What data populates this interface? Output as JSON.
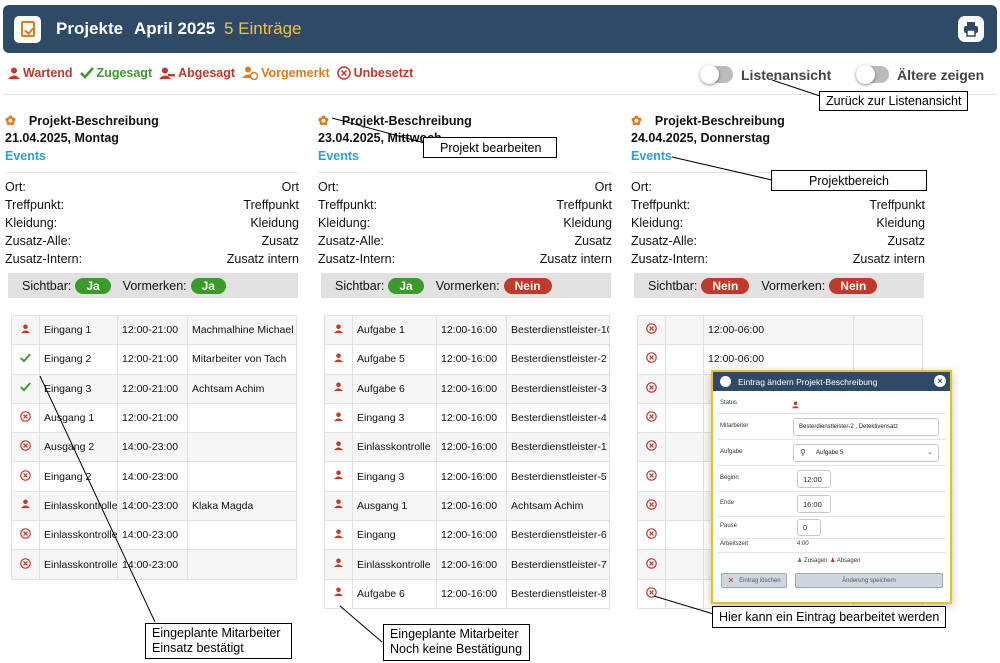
{
  "header": {
    "title": "Projekte",
    "month": "April 2025",
    "count": "5 Einträge",
    "logo_icon": "clipboard-check-icon",
    "print_icon": "printer-icon",
    "background": "#2f4a66",
    "count_color": "#f3c33c"
  },
  "legend": {
    "waiting": "Wartend",
    "confirmed": "Zugesagt",
    "declined": "Abgesagt",
    "reserved": "Vorgemerkt",
    "unfilled": "Unbesetzt"
  },
  "toggles": {
    "list_view": "Listenansicht",
    "show_older": "Ältere zeigen"
  },
  "labels": {
    "ort": "Ort:",
    "treffpunkt": "Treffpunkt:",
    "kleidung": "Kleidung:",
    "zusatz_alle": "Zusatz-Alle:",
    "zusatz_intern": "Zusatz-Intern:",
    "sichtbar": "Sichtbar:",
    "vormerken": "Vormerken:"
  },
  "columns": [
    {
      "title": "Projekt-Beschreibung",
      "date": "21.04.2025, Montag",
      "events": "Events",
      "ort": "Ort",
      "treffpunkt": "Treffpunkt",
      "kleidung": "Kleidung",
      "zusatz": "Zusatz",
      "zusatz_intern": "Zusatz intern",
      "sichtbar": "Ja",
      "vormerken": "Ja",
      "rows": [
        {
          "status": "waiting",
          "task": "Eingang 1",
          "time": "12:00-21:00",
          "person": "Machmalhine Michael"
        },
        {
          "status": "confirmed",
          "task": "Eingang 2",
          "time": "12:00-21:00",
          "person": "Mitarbeiter von Tach"
        },
        {
          "status": "confirmed",
          "task": "Eingang 3",
          "time": "12:00-21:00",
          "person": "Achtsam Achim"
        },
        {
          "status": "unfilled",
          "task": "Ausgang 1",
          "time": "12:00-21:00",
          "person": ""
        },
        {
          "status": "unfilled",
          "task": "Ausgang 2",
          "time": "14:00-23:00",
          "person": ""
        },
        {
          "status": "unfilled",
          "task": "Eingang 2",
          "time": "14:00-23:00",
          "person": ""
        },
        {
          "status": "waiting",
          "task": "Einlasskontrolle",
          "time": "14:00-23:00",
          "person": "Klaka Magda"
        },
        {
          "status": "unfilled",
          "task": "Einlasskontrolle",
          "time": "14:00-23:00",
          "person": ""
        },
        {
          "status": "unfilled",
          "task": "Einlasskontrolle",
          "time": "14:00-23:00",
          "person": ""
        }
      ]
    },
    {
      "title": "Projekt-Beschreibung",
      "date": "23.04.2025, Mittwoch",
      "events": "Events",
      "ort": "Ort",
      "treffpunkt": "Treffpunkt",
      "kleidung": "Kleidung",
      "zusatz": "Zusatz",
      "zusatz_intern": "Zusatz intern",
      "sichtbar": "Ja",
      "vormerken": "Nein",
      "rows": [
        {
          "status": "waiting",
          "task": "Aufgabe 1",
          "time": "12:00-16:00",
          "person": "Besterdienstleister-10"
        },
        {
          "status": "waiting",
          "task": "Aufgabe 5",
          "time": "12:00-16:00",
          "person": "Besterdienstleister-2"
        },
        {
          "status": "waiting",
          "task": "Aufgabe 6",
          "time": "12:00-16:00",
          "person": "Besterdienstleister-3"
        },
        {
          "status": "waiting",
          "task": "Eingang 3",
          "time": "12:00-16:00",
          "person": "Besterdienstleister-4"
        },
        {
          "status": "waiting",
          "task": "Einlasskontrolle",
          "time": "12:00-16:00",
          "person": "Besterdienstleister-1"
        },
        {
          "status": "waiting",
          "task": "Eingang 3",
          "time": "12:00-16:00",
          "person": "Besterdienstleister-5"
        },
        {
          "status": "waiting",
          "task": "Ausgang 1",
          "time": "12:00-16:00",
          "person": "Achtsam Achim"
        },
        {
          "status": "waiting",
          "task": "Eingang",
          "time": "12:00-16:00",
          "person": "Besterdienstleister-6"
        },
        {
          "status": "waiting",
          "task": "Einlasskontrolle",
          "time": "12:00-16:00",
          "person": "Besterdienstleister-7"
        },
        {
          "status": "waiting",
          "task": "Aufgabe 6",
          "time": "12:00-16:00",
          "person": "Besterdienstleister-8"
        }
      ]
    },
    {
      "title": "Projekt-Beschreibung",
      "date": "24.04.2025, Donnerstag",
      "events": "Events",
      "ort": "Ort",
      "treffpunkt": "Treffpunkt",
      "kleidung": "Kleidung",
      "zusatz": "Zusatz",
      "zusatz_intern": "Zusatz intern",
      "sichtbar": "Nein",
      "vormerken": "Nein",
      "rows": [
        {
          "status": "unfilled",
          "task": "",
          "time": "12:00-06:00",
          "person": ""
        },
        {
          "status": "unfilled",
          "task": "",
          "time": "12:00-06:00",
          "person": ""
        },
        {
          "status": "unfilled",
          "task": "",
          "time": "",
          "person": ""
        },
        {
          "status": "unfilled",
          "task": "",
          "time": "",
          "person": ""
        },
        {
          "status": "unfilled",
          "task": "",
          "time": "",
          "person": ""
        },
        {
          "status": "unfilled",
          "task": "",
          "time": "",
          "person": ""
        },
        {
          "status": "unfilled",
          "task": "",
          "time": "",
          "person": ""
        },
        {
          "status": "unfilled",
          "task": "",
          "time": "",
          "person": ""
        },
        {
          "status": "unfilled",
          "task": "",
          "time": "",
          "person": ""
        },
        {
          "status": "unfilled",
          "task": "",
          "time": "",
          "person": ""
        }
      ]
    }
  ],
  "modal": {
    "title": "Eintrag ändern Projekt-Beschreibung",
    "status_label": "Status",
    "mitarbeiter_label": "Mitarbeiter",
    "mitarbeiter_value": "Besterdienstleister-2 , Detektivensatz",
    "aufgabe_label": "Aufgabe",
    "aufgabe_value": "Aufgabe 5",
    "beginn_label": "Beginn",
    "beginn_value": "12:00",
    "ende_label": "Ende",
    "ende_value": "16:00",
    "pause_label": "Pause",
    "pause_value": "0",
    "arbeitszeit_label": "Arbeitszeit",
    "arbeitszeit_value": "4:00",
    "zusagen": "Zusagen",
    "absagen": "Absagen",
    "delete": "Eintrag löschen",
    "save": "Änderung speichern"
  },
  "callouts": {
    "list_view": "Zurück zur Listenansicht",
    "edit_project": "Projekt bearbeiten",
    "project_area": "Projektbereich",
    "edit_entry": "Hier kann ein Eintrag bearbeitet werden",
    "confirmed_1": "Eingeplante Mitarbeiter",
    "confirmed_2": "Einsatz bestätigt",
    "unconfirmed_1": "Eingeplante Mitarbeiter",
    "unconfirmed_2": "Noch keine Bestätigung"
  },
  "colors": {
    "waiting": "#c0392b",
    "confirmed": "#3a9a2a",
    "declined": "#c0392b",
    "reserved": "#e07a1f",
    "unfilled": "#c0392b",
    "link": "#2aa0d6"
  }
}
